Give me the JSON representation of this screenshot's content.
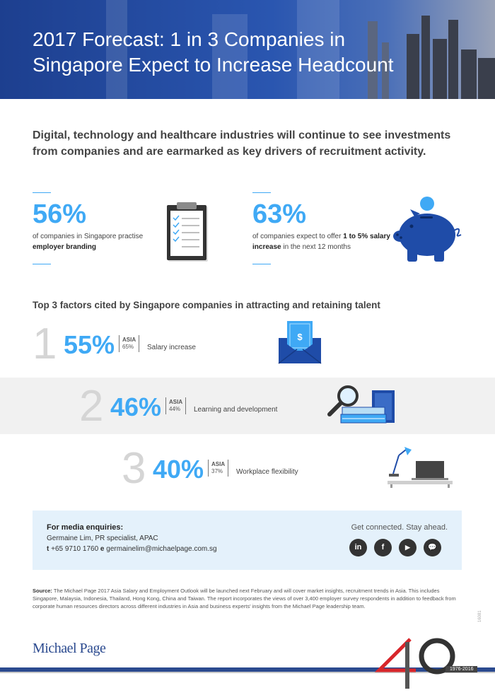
{
  "header": {
    "title": "2017 Forecast: 1 in 3 Companies in Singapore Expect to Increase Headcount"
  },
  "intro": "Digital, technology and healthcare industries will continue to see investments from companies and are earmarked as key drivers of recruitment activity.",
  "stats": [
    {
      "value": "56%",
      "text": "of companies in Singapore practise",
      "bold": "employer branding",
      "tail": "",
      "icon": "clipboard-icon"
    },
    {
      "value": "63%",
      "text": "of companies expect to offer",
      "bold": "1 to 5% salary increase",
      "tail": "in the next 12 months",
      "icon": "piggy-bank-icon"
    }
  ],
  "factors_title": "Top 3 factors cited by Singapore companies in attracting and retaining talent",
  "factors": [
    {
      "rank": "1",
      "value": "55%",
      "asia_label": "ASIA",
      "asia_value": "65%",
      "label": "Salary increase",
      "icon": "money-envelope-icon"
    },
    {
      "rank": "2",
      "value": "46%",
      "asia_label": "ASIA",
      "asia_value": "44%",
      "label": "Learning and development",
      "icon": "magnifier-books-icon"
    },
    {
      "rank": "3",
      "value": "40%",
      "asia_label": "ASIA",
      "asia_value": "37%",
      "label": "Workplace flexibility",
      "icon": "desk-laptop-icon"
    }
  ],
  "media": {
    "heading": "For media enquiries:",
    "contact": "Germaine Lim, PR specialist, APAC",
    "phone_label": "t",
    "phone": "+65 9710 1760",
    "email_label": "e",
    "email": "germainelim@michaelpage.com.sg",
    "tagline": "Get connected. Stay ahead.",
    "social": [
      {
        "name": "linkedin-icon",
        "glyph": "in"
      },
      {
        "name": "facebook-icon",
        "glyph": "f"
      },
      {
        "name": "youtube-icon",
        "glyph": "▶"
      },
      {
        "name": "chat-icon",
        "glyph": "💬"
      }
    ]
  },
  "source": {
    "label": "Source:",
    "text": "The Michael Page 2017 Asia Salary and Employment Outlook will be launched next February and will cover market insights, recruitment trends in Asia. This includes Singapore, Malaysia, Indonesia, Thailand, Hong Kong, China and Taiwan. The report incorporates the views of over 3,400 employer survey respondents in addition to feedback from corporate human resources directors across different industries in Asia and business experts' insights from the Michael Page leadership team."
  },
  "footer": {
    "logo": "Michael Page",
    "anniversary": "40",
    "years": "1976-2016",
    "code": "16081"
  },
  "colors": {
    "accent": "#3fa9f5",
    "navy": "#2b4a8f",
    "band": "#f1f1f1",
    "media_bg": "#e4f1fb"
  }
}
